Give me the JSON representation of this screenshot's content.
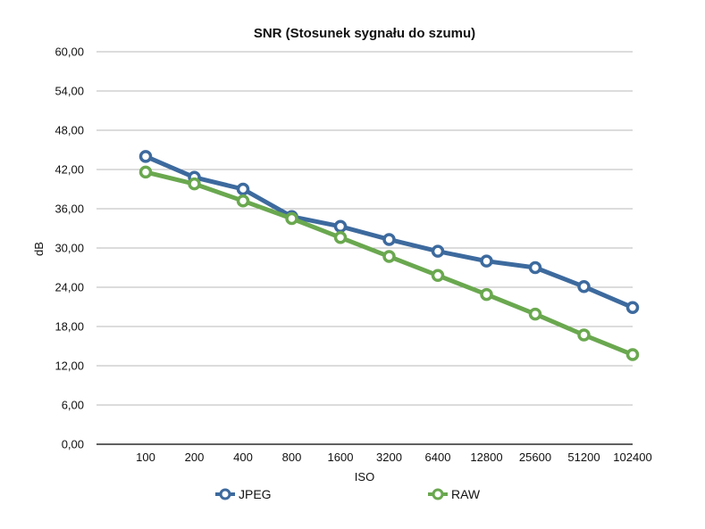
{
  "chart_data": {
    "type": "line",
    "title": "SNR (Stosunek sygnału do szumu)",
    "xlabel": "ISO",
    "ylabel": "dB",
    "categories": [
      "100",
      "200",
      "400",
      "800",
      "1600",
      "3200",
      "6400",
      "12800",
      "25600",
      "51200",
      "102400"
    ],
    "ylim": [
      0,
      60
    ],
    "yticks": [
      0,
      6,
      12,
      18,
      24,
      30,
      36,
      42,
      48,
      54,
      60
    ],
    "ytick_labels": [
      "0,00",
      "6,00",
      "12,00",
      "18,00",
      "24,00",
      "30,00",
      "36,00",
      "42,00",
      "48,00",
      "54,00",
      "60,00"
    ],
    "grid": true,
    "legend_position": "bottom",
    "series": [
      {
        "name": "JPEG",
        "color": "#3d6a9e",
        "values": [
          44.0,
          40.8,
          39.0,
          34.8,
          33.3,
          31.3,
          29.5,
          28.0,
          27.0,
          24.1,
          20.9
        ]
      },
      {
        "name": "RAW",
        "color": "#6aa84f",
        "values": [
          41.6,
          39.8,
          37.2,
          34.5,
          31.6,
          28.7,
          25.8,
          22.9,
          19.9,
          16.7,
          13.7
        ]
      }
    ]
  }
}
